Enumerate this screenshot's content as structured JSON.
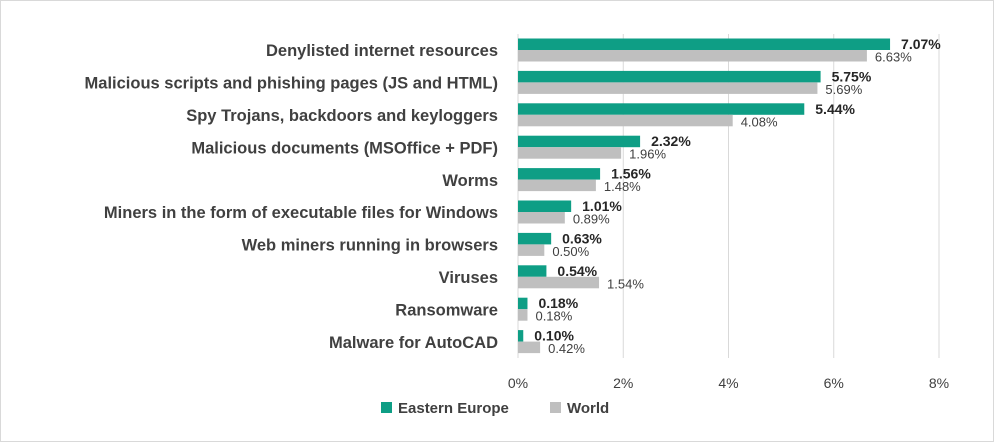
{
  "chart_data": {
    "type": "bar",
    "orientation": "horizontal",
    "categories": [
      "Denylisted internet resources",
      "Malicious scripts and phishing pages (JS and HTML)",
      "Spy Trojans, backdoors and keyloggers",
      "Malicious documents (MSOffice + PDF)",
      "Worms",
      "Miners in the form of executable files for Windows",
      "Web miners running in browsers",
      "Viruses",
      "Ransomware",
      "Malware for AutoCAD"
    ],
    "series": [
      {
        "name": "Eastern Europe",
        "color": "#0e9e85",
        "values": [
          7.07,
          5.75,
          5.44,
          2.32,
          1.56,
          1.01,
          0.63,
          0.54,
          0.18,
          0.1
        ],
        "labels": [
          "7.07%",
          "5.75%",
          "5.44%",
          "2.32%",
          "1.56%",
          "1.01%",
          "0.63%",
          "0.54%",
          "0.18%",
          "0.10%"
        ]
      },
      {
        "name": "World",
        "color": "#bfbfbf",
        "values": [
          6.63,
          5.69,
          4.08,
          1.96,
          1.48,
          0.89,
          0.5,
          1.54,
          0.18,
          0.42
        ],
        "labels": [
          "6.63%",
          "5.69%",
          "4.08%",
          "1.96%",
          "1.48%",
          "0.89%",
          "0.50%",
          "1.54%",
          "0.18%",
          "0.42%"
        ]
      }
    ],
    "xlim": [
      0,
      8
    ],
    "x_ticks": [
      0,
      2,
      4,
      6,
      8
    ],
    "x_tick_labels": [
      "0%",
      "2%",
      "4%",
      "6%",
      "8%"
    ],
    "grid": "vertical",
    "gridline_color": "#d9d9d9",
    "legend_position": "bottom"
  }
}
